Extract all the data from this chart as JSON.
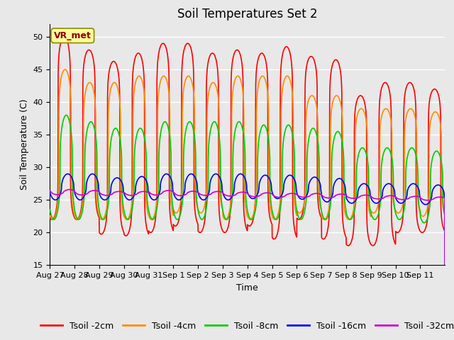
{
  "title": "Soil Temperatures Set 2",
  "xlabel": "Time",
  "ylabel": "Soil Temperature (C)",
  "ylim": [
    15,
    52
  ],
  "yticks": [
    15,
    20,
    25,
    30,
    35,
    40,
    45,
    50
  ],
  "x_labels": [
    "Aug 27",
    "Aug 28",
    "Aug 29",
    "Aug 30",
    "Aug 31",
    "Sep 1",
    "Sep 2",
    "Sep 3",
    "Sep 4",
    "Sep 5",
    "Sep 6",
    "Sep 7",
    "Sep 8",
    "Sep 9",
    "Sep 10",
    "Sep 11"
  ],
  "series": {
    "Tsoil -2cm": {
      "color": "#FF0000",
      "linewidth": 1.2
    },
    "Tsoil -4cm": {
      "color": "#FF8C00",
      "linewidth": 1.2
    },
    "Tsoil -8cm": {
      "color": "#00CC00",
      "linewidth": 1.2
    },
    "Tsoil -16cm": {
      "color": "#0000FF",
      "linewidth": 1.2
    },
    "Tsoil -32cm": {
      "color": "#CC00CC",
      "linewidth": 1.2
    }
  },
  "annotation": {
    "text": "VR_met",
    "fontsize": 9,
    "text_color": "#8B0000",
    "box_color": "#FFFF99",
    "box_edge": "#8B8B00"
  },
  "background_color": "#E8E8E8",
  "grid_color": "#FFFFFF",
  "title_fontsize": 12,
  "axis_fontsize": 8,
  "legend_fontsize": 9
}
